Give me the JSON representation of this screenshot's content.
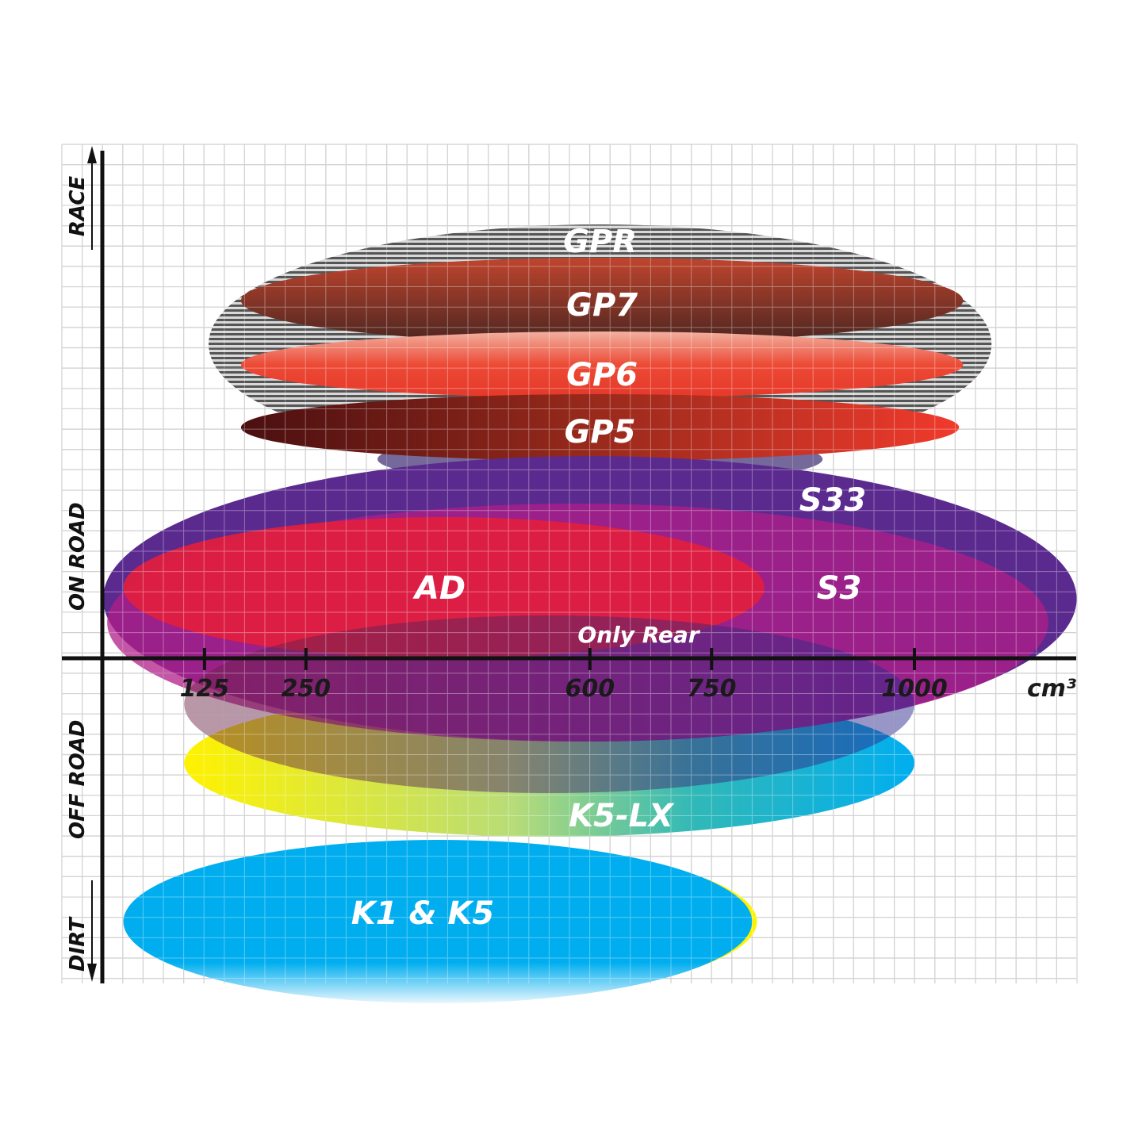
{
  "chart_data": {
    "type": "diagram",
    "title": "",
    "xlabel": "cm³",
    "ylabel": "",
    "x_ticks": [
      125,
      250,
      600,
      750,
      1000
    ],
    "x_unit": "cm³",
    "y_categories": [
      "RACE",
      "ON ROAD",
      "OFF ROAD",
      "DIRT"
    ],
    "grid": true,
    "series": [
      {
        "name": "GPR",
        "cc_range": [
          130,
          1095
        ],
        "segment": "RACE",
        "color": "#8a8a8a"
      },
      {
        "name": "GP7",
        "cc_range": [
          170,
          1060
        ],
        "segment": "RACE",
        "color": "#a0382a"
      },
      {
        "name": "GP6",
        "cc_range": [
          170,
          1060
        ],
        "segment": "RACE",
        "color": "#e8402f"
      },
      {
        "name": "GP5",
        "cc_range": [
          170,
          1055
        ],
        "segment": "RACE",
        "color": "#b32a1e"
      },
      {
        "name": "S33",
        "cc_range": [
          0,
          1200
        ],
        "segment": "ON ROAD",
        "color": "#5b2a8e"
      },
      {
        "name": "S3",
        "cc_range": [
          5,
          1165
        ],
        "segment": "ON ROAD",
        "color": "#a3208a"
      },
      {
        "name": "AD",
        "cc_range": [
          25,
          815
        ],
        "segment": "ON ROAD",
        "color": "#e0203f"
      },
      {
        "name": "Only Rear",
        "cc_range": [
          100,
          1000
        ],
        "segment": "ON ROAD / OFF ROAD",
        "color": "#7a2a7a"
      },
      {
        "name": "K5-LX",
        "cc_range": [
          100,
          1000
        ],
        "segment": "OFF ROAD",
        "color": "#2ab0c8"
      },
      {
        "name": "K1 & K5",
        "cc_range": [
          25,
          800
        ],
        "segment": "DIRT",
        "color": "#00aeef"
      }
    ]
  }
}
